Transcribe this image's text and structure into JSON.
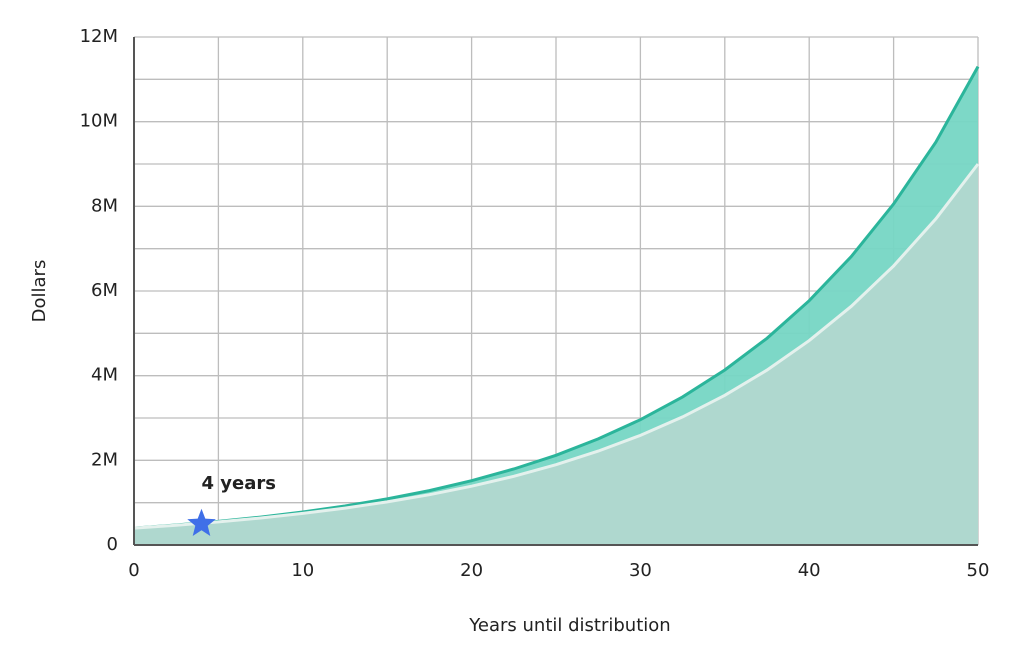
{
  "chart_data": {
    "type": "area",
    "x_label": "Years until distribution",
    "y_label": "Dollars",
    "x": [
      0,
      2.5,
      5,
      7.5,
      10,
      12.5,
      15,
      17.5,
      20,
      22.5,
      25,
      27.5,
      30,
      32.5,
      35,
      37.5,
      40,
      42.5,
      45,
      47.5,
      50
    ],
    "series": [
      {
        "color": "#2bb59b",
        "fill": "#76d6c4",
        "values": [
          400000,
          473000,
          558000,
          660000,
          780000,
          921000,
          1088000,
          1286000,
          1519000,
          1795000,
          2120000,
          2506000,
          2960000,
          3498000,
          4133000,
          4883000,
          5770000,
          6817000,
          8054000,
          9516000,
          11300000
        ]
      },
      {
        "color": "#e4f1ed",
        "fill": "#b2d8d0",
        "values": [
          400000,
          467000,
          546000,
          638000,
          746000,
          871000,
          1018000,
          1189000,
          1390000,
          1624000,
          1898000,
          2217000,
          2590000,
          3027000,
          3537000,
          4132000,
          4829000,
          5641000,
          6592000,
          7702000,
          9000000
        ]
      }
    ],
    "xlim": [
      0,
      50
    ],
    "xticks": [
      0,
      10,
      20,
      30,
      40,
      50
    ],
    "x_minor_ticks": [
      5,
      15,
      25,
      35,
      45
    ],
    "ylim": [
      0,
      12000000
    ],
    "yticks": [
      0,
      {
        "value": 2000000,
        "label": "2M"
      },
      {
        "value": 4000000,
        "label": "4M"
      },
      {
        "value": 6000000,
        "label": "6M"
      },
      {
        "value": 8000000,
        "label": "8M"
      },
      {
        "value": 10000000,
        "label": "10M"
      },
      {
        "value": 12000000,
        "label": "12M"
      }
    ],
    "y_minor_ticks": [
      1000000,
      3000000,
      5000000,
      7000000,
      9000000,
      11000000
    ],
    "grid": true,
    "annotation": {
      "text": "4 years",
      "x": 4,
      "y": 500000,
      "color": "#3f6fe8"
    }
  }
}
